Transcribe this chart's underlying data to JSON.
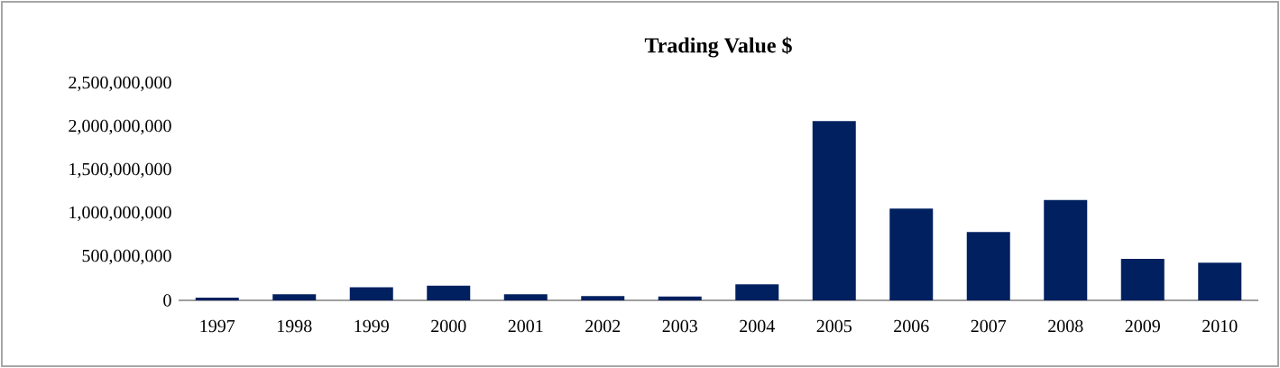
{
  "chart_data": {
    "type": "bar",
    "title": "Trading Value $",
    "categories": [
      "1997",
      "1998",
      "1999",
      "2000",
      "2001",
      "2002",
      "2003",
      "2004",
      "2005",
      "2006",
      "2007",
      "2008",
      "2009",
      "2010"
    ],
    "values": [
      30000000,
      70000000,
      150000000,
      170000000,
      70000000,
      50000000,
      45000000,
      185000000,
      2070000000,
      1060000000,
      790000000,
      1160000000,
      480000000,
      435000000
    ],
    "color": "#002060",
    "ylim": [
      0,
      2500000000
    ],
    "yticks": [
      {
        "value": 0,
        "label": "0"
      },
      {
        "value": 500000000,
        "label": "500,000,000"
      },
      {
        "value": 1000000000,
        "label": "1,000,000,000"
      },
      {
        "value": 1500000000,
        "label": "1,500,000,000"
      },
      {
        "value": 2000000000,
        "label": "2,000,000,000"
      },
      {
        "value": 2500000000,
        "label": "2,500,000,000"
      }
    ]
  }
}
